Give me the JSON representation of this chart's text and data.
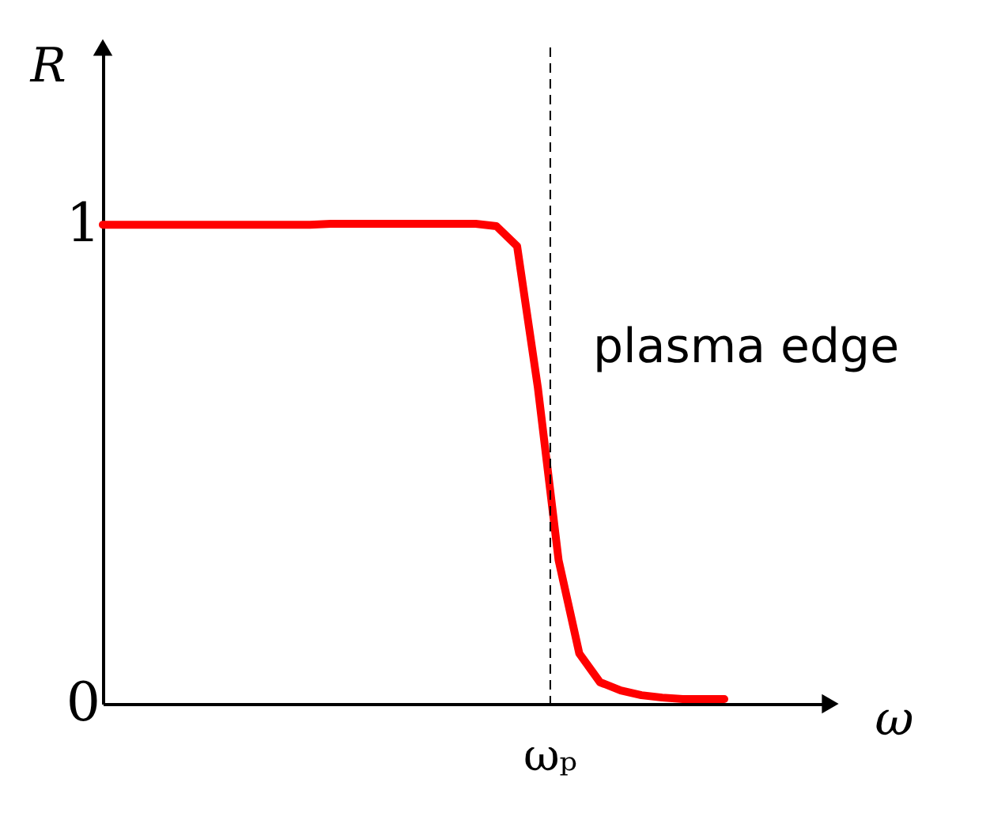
{
  "chart_data": {
    "type": "line",
    "xlabel": "ω",
    "ylabel": "R",
    "categories": [
      null,
      null,
      null,
      null,
      null,
      null,
      null,
      null,
      null,
      null,
      null,
      null,
      null,
      null,
      null,
      null,
      null,
      null,
      null,
      null,
      null,
      null,
      null,
      null,
      null,
      null,
      null,
      null,
      null,
      null,
      null
    ],
    "series": [
      {
        "color": "#ff0000",
        "values": [
          1.0,
          1.0,
          1.0,
          1.0,
          1.0,
          1.0,
          1.0,
          1.0,
          1.0,
          1.0,
          1.0,
          1.002,
          1.002,
          1.002,
          1.002,
          1.002,
          1.002,
          1.002,
          1.002,
          0.997,
          0.955,
          0.66,
          0.3,
          0.105,
          0.045,
          0.028,
          0.018,
          0.013,
          0.01,
          0.01,
          0.01
        ]
      }
    ],
    "ylim": [
      0,
      1.37
    ],
    "yticks": [
      0,
      1
    ],
    "tick_labels": "y",
    "annotations": [
      "plasma edge",
      "ωₚ"
    ],
    "grid": false,
    "marker": "none",
    "line_style": "solid"
  }
}
